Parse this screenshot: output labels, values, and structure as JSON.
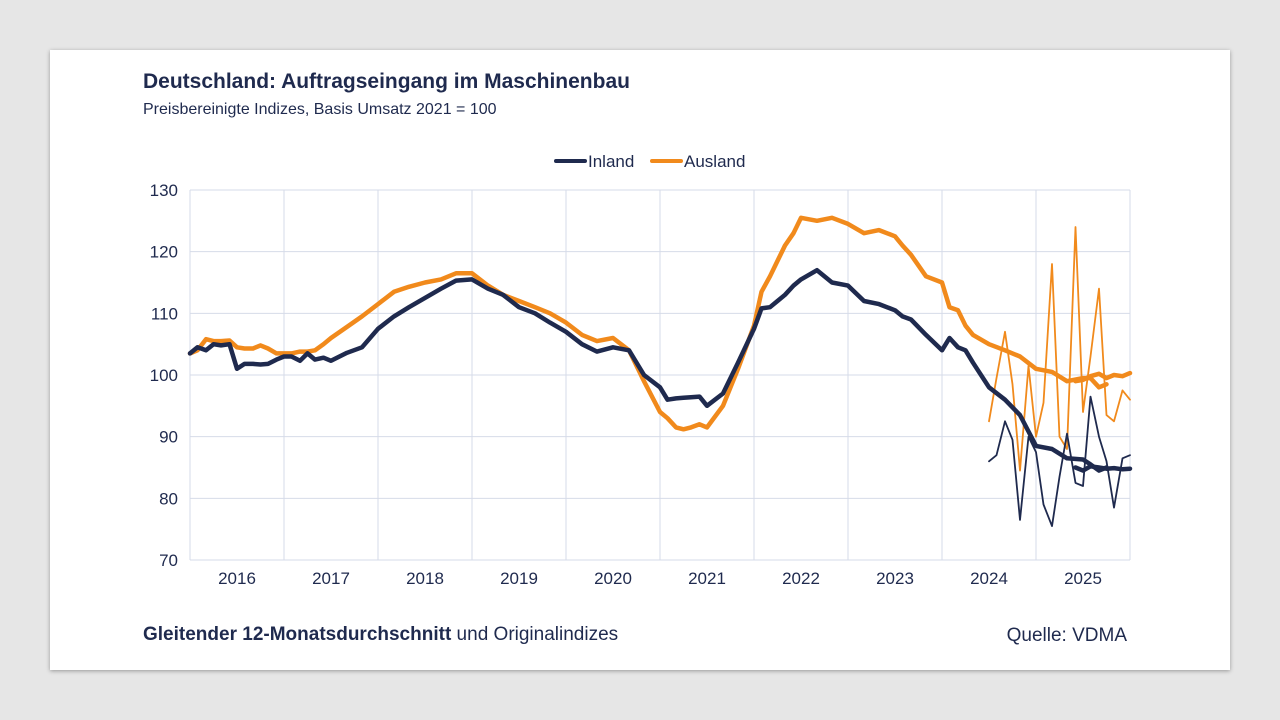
{
  "header": {
    "title": "Deutschland: Auftragseingang im Maschinenbau",
    "subtitle": "Preisbereinigte Indizes, Basis Umsatz 2021 = 100"
  },
  "footer": {
    "note_bold": "Gleitender 12-Monatsdurchschnitt",
    "note_rest": " und Originalindizes",
    "source": "Quelle: VDMA"
  },
  "chart_data": {
    "type": "line",
    "ylim": [
      70,
      130
    ],
    "yticks": [
      "70",
      "80",
      "90",
      "100",
      "110",
      "120",
      "130"
    ],
    "xlim": [
      2015.5,
      2025.5
    ],
    "xticks": [
      "2016",
      "2017",
      "2018",
      "2019",
      "2020",
      "2021",
      "2022",
      "2023",
      "2024",
      "2025"
    ],
    "grid": true,
    "legend_position": "top-center",
    "series": [
      {
        "name": "Inland",
        "kind": "moving-average",
        "color": "#1f2a4e",
        "x": [
          2015.5,
          2015.58,
          2015.67,
          2015.75,
          2015.83,
          2015.92,
          2016.0,
          2016.08,
          2016.17,
          2016.25,
          2016.33,
          2016.42,
          2016.5,
          2016.58,
          2016.67,
          2016.75,
          2016.83,
          2016.92,
          2017.0,
          2017.17,
          2017.33,
          2017.5,
          2017.67,
          2017.83,
          2018.0,
          2018.17,
          2018.33,
          2018.5,
          2018.67,
          2018.83,
          2019.0,
          2019.17,
          2019.33,
          2019.5,
          2019.67,
          2019.83,
          2020.0,
          2020.17,
          2020.33,
          2020.5,
          2020.58,
          2020.67,
          2020.75,
          2020.83,
          2020.92,
          2021.0,
          2021.17,
          2021.33,
          2021.5,
          2021.58,
          2021.67,
          2021.75,
          2021.83,
          2021.92,
          2022.0,
          2022.17,
          2022.33,
          2022.5,
          2022.67,
          2022.83,
          2023.0,
          2023.08,
          2023.17,
          2023.33,
          2023.5,
          2023.58,
          2023.67,
          2023.75,
          2023.83,
          2024.0,
          2024.17,
          2024.33,
          2024.5,
          2024.67,
          2024.83,
          2025.0,
          2025.08,
          2025.17,
          2025.25
        ],
        "values": [
          103.5,
          104.5,
          104.0,
          105.0,
          104.8,
          105.0,
          101.0,
          101.8,
          101.8,
          101.7,
          101.8,
          102.5,
          103.0,
          103.0,
          102.3,
          103.5,
          102.5,
          102.8,
          102.3,
          103.6,
          104.5,
          107.5,
          109.5,
          111.0,
          112.5,
          114.0,
          115.3,
          115.5,
          114.0,
          113.0,
          111.0,
          110.0,
          108.5,
          107.0,
          105.0,
          103.8,
          104.5,
          104.0,
          100.0,
          98.0,
          96.0,
          96.2,
          96.3,
          96.4,
          96.5,
          95.0,
          97.0,
          102.0,
          107.5,
          110.8,
          111.0,
          112.0,
          113.0,
          114.5,
          115.5,
          117.0,
          115.0,
          114.5,
          112.0,
          111.5,
          110.5,
          109.5,
          109.0,
          106.5,
          104.0,
          106.0,
          104.5,
          104.0,
          102.0,
          98.0,
          96.0,
          93.5,
          88.5,
          88.0,
          86.5,
          86.3,
          85.5,
          84.5,
          85.0
        ]
      },
      {
        "name": "Ausland",
        "kind": "moving-average",
        "color": "#f18a1c",
        "values": [
          103.5,
          104.0,
          105.8,
          105.5,
          105.5,
          105.6,
          104.5,
          104.3,
          104.3,
          104.8,
          104.3,
          103.5,
          103.5,
          103.5,
          103.8,
          103.8,
          104.0,
          105.0,
          106.0,
          107.8,
          109.5,
          111.5,
          113.5,
          114.3,
          115.0,
          115.5,
          116.5,
          116.5,
          114.5,
          113.0,
          112.0,
          111.0,
          110.0,
          108.5,
          106.5,
          105.5,
          106.0,
          104.0,
          99.0,
          94.0,
          93.0,
          91.5,
          91.2,
          91.5,
          92.0,
          91.5,
          95.0,
          101.0,
          108.0,
          113.5,
          116.0,
          118.5,
          121.0,
          123.0,
          125.5,
          125.0,
          125.5,
          124.5,
          123.0,
          123.5,
          122.5,
          121.0,
          119.5,
          116.0,
          115.0,
          111.0,
          110.5,
          108.0,
          106.5,
          105.0,
          104.0,
          103.0,
          101.0,
          100.5,
          99.0,
          99.5,
          99.5,
          98.0,
          98.5
        ]
      },
      {
        "name": "Inland",
        "kind": "original",
        "color": "#1f2a4e",
        "x": [
          2024.0,
          2024.08,
          2024.17,
          2024.25,
          2024.33,
          2024.42,
          2024.5,
          2024.58,
          2024.67,
          2024.75,
          2024.83,
          2024.92,
          2025.0,
          2025.08,
          2025.17,
          2025.25,
          2025.33,
          2025.42,
          2025.5
        ],
        "values": [
          86.0,
          87.0,
          92.5,
          89.5,
          76.5,
          90.0,
          87.5,
          79.0,
          75.5,
          83.5,
          90.5,
          82.5,
          82.0,
          96.5,
          90.0,
          86.0,
          78.5,
          86.5,
          87.0
        ]
      },
      {
        "name": "Ausland",
        "kind": "original",
        "color": "#f18a1c",
        "values": [
          92.5,
          99.5,
          107.0,
          98.5,
          84.5,
          101.5,
          90.0,
          95.5,
          118.0,
          90.0,
          88.0,
          124.0,
          94.0,
          103.0,
          114.0,
          93.5,
          92.5,
          97.5,
          96.0
        ]
      },
      {
        "name": "Inland",
        "kind": "moving-average-tail",
        "x": [
          2024.92,
          2025.0,
          2025.08,
          2025.17,
          2025.25,
          2025.33,
          2025.42,
          2025.5
        ],
        "values": [
          85.0,
          84.5,
          85.2,
          85.0,
          84.8,
          84.9,
          84.7,
          84.8
        ]
      },
      {
        "name": "Ausland",
        "kind": "moving-average-tail",
        "values": [
          99.0,
          99.2,
          99.8,
          100.2,
          99.5,
          100.0,
          99.8,
          100.3
        ]
      }
    ]
  }
}
